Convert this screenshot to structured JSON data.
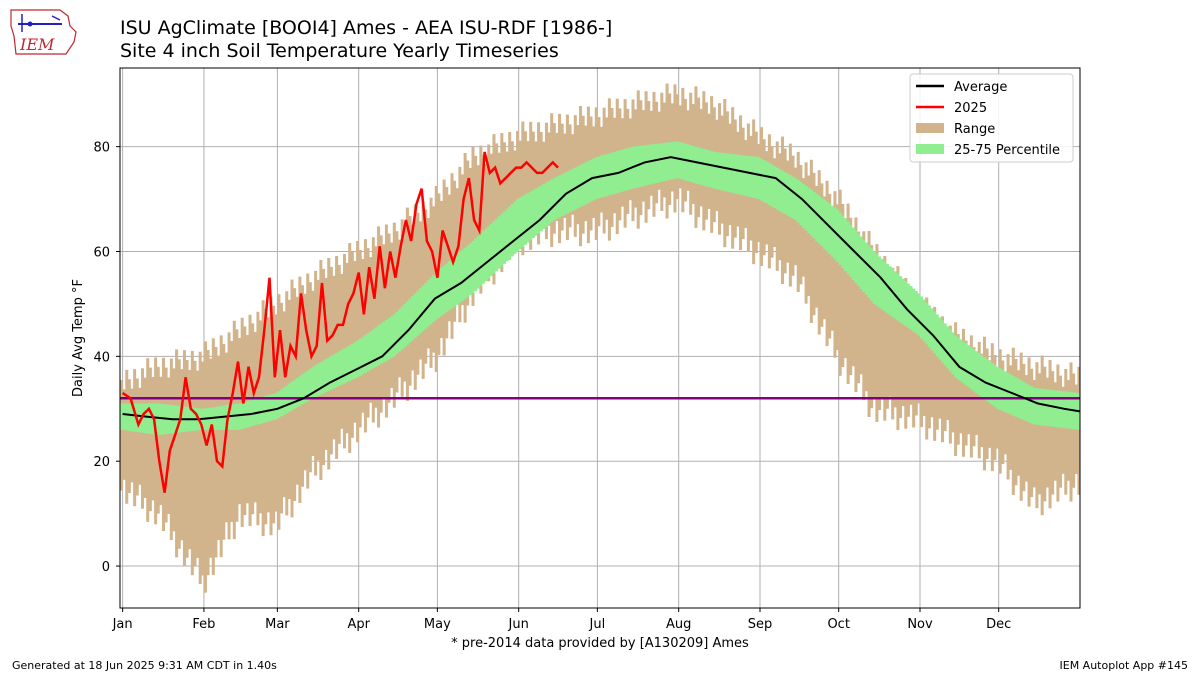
{
  "header": {
    "title_line1": "ISU AgClimate [BOOI4] Ames - AEA ISU-RDF [1986-]",
    "title_line2": "Site 4 inch Soil Temperature Yearly Timeseries"
  },
  "logo": {
    "text": "IEM"
  },
  "footer": {
    "left": "Generated at 18 Jun 2025 9:31 AM CDT in 1.40s",
    "right": "IEM Autoplot App #145"
  },
  "colors": {
    "average": "#000000",
    "current": "#ff0000",
    "range": "#d2b48c",
    "percentile": "#90ee90",
    "freezing": "#800080",
    "grid": "#b0b0b0"
  },
  "chart_data": {
    "type": "bar",
    "xlabel": "* pre-2014 data provided by [A130209] Ames",
    "ylabel": "Daily Avg Temp °F",
    "ylim": [
      -8,
      95
    ],
    "xlim_doy": [
      0,
      366
    ],
    "yticks": [
      0,
      20,
      40,
      60,
      80
    ],
    "month_ticks": [
      {
        "label": "Jan",
        "doy": 1
      },
      {
        "label": "Feb",
        "doy": 32
      },
      {
        "label": "Mar",
        "doy": 60
      },
      {
        "label": "Apr",
        "doy": 91
      },
      {
        "label": "May",
        "doy": 121
      },
      {
        "label": "Jun",
        "doy": 152
      },
      {
        "label": "Jul",
        "doy": 182
      },
      {
        "label": "Aug",
        "doy": 213
      },
      {
        "label": "Sep",
        "doy": 244
      },
      {
        "label": "Oct",
        "doy": 274
      },
      {
        "label": "Nov",
        "doy": 305
      },
      {
        "label": "Dec",
        "doy": 335
      }
    ],
    "grid": true,
    "legend_position": "top-right",
    "freezing_line": 32,
    "series": [
      {
        "name": "Average",
        "kind": "line",
        "doy": [
          1,
          10,
          20,
          30,
          40,
          50,
          60,
          70,
          80,
          90,
          100,
          110,
          120,
          130,
          140,
          150,
          160,
          170,
          180,
          190,
          200,
          210,
          220,
          230,
          240,
          250,
          260,
          270,
          280,
          290,
          300,
          310,
          320,
          330,
          340,
          350,
          360,
          366
        ],
        "values": [
          29,
          28.5,
          28,
          28,
          28.5,
          29,
          30,
          32,
          35,
          37.5,
          40,
          45,
          51,
          54,
          58,
          62,
          66,
          71,
          74,
          75,
          77,
          78,
          77,
          76,
          75,
          74,
          70,
          65,
          60,
          55,
          49,
          44,
          38,
          35,
          33,
          31,
          30,
          29.5
        ]
      },
      {
        "name": "2025",
        "kind": "line",
        "doy": [
          1,
          4,
          7,
          9,
          11,
          13,
          15,
          17,
          19,
          21,
          23,
          25,
          27,
          29,
          31,
          33,
          35,
          37,
          39,
          41,
          43,
          45,
          47,
          49,
          51,
          53,
          55,
          57,
          59,
          61,
          63,
          65,
          67,
          69,
          71,
          73,
          75,
          77,
          79,
          81,
          83,
          85,
          87,
          89,
          91,
          93,
          95,
          97,
          99,
          101,
          103,
          105,
          107,
          109,
          111,
          113,
          115,
          117,
          119,
          121,
          123,
          125,
          127,
          129,
          131,
          133,
          135,
          137,
          139,
          141,
          143,
          145,
          147,
          149,
          151,
          153,
          155,
          157,
          159,
          161,
          163,
          165,
          167
        ],
        "values": [
          33,
          32,
          27,
          29,
          30,
          28,
          20,
          14,
          22,
          25,
          28,
          36,
          30,
          29,
          27,
          23,
          27,
          20,
          19,
          28,
          33,
          39,
          31,
          38,
          33,
          36,
          45,
          55,
          36,
          45,
          36,
          42,
          40,
          52,
          45,
          40,
          42,
          54,
          43,
          44,
          46,
          46,
          50,
          52,
          56,
          48,
          57,
          51,
          61,
          53,
          60,
          55,
          61,
          66,
          62,
          69,
          72,
          62,
          60,
          55,
          64,
          61,
          58,
          61,
          70,
          74,
          66,
          64,
          79,
          75,
          76,
          73,
          74,
          75,
          76,
          76,
          77,
          76,
          75,
          75,
          76,
          77,
          76
        ]
      },
      {
        "name": "Range",
        "kind": "band",
        "doy": [
          1,
          15,
          32,
          46,
          60,
          74,
          91,
          105,
          121,
          135,
          152,
          166,
          182,
          196,
          213,
          227,
          244,
          258,
          274,
          288,
          305,
          319,
          335,
          349,
          366
        ],
        "low": [
          15,
          10,
          -3,
          10,
          8,
          18,
          26,
          32,
          40,
          52,
          62,
          64,
          64,
          67,
          70,
          65,
          60,
          55,
          40,
          30,
          28,
          24,
          20,
          12,
          16
        ],
        "high": [
          35,
          38,
          40,
          45,
          50,
          55,
          60,
          64,
          70,
          78,
          82,
          84,
          86,
          88,
          90,
          88,
          82,
          78,
          70,
          60,
          50,
          44,
          40,
          38,
          36
        ]
      },
      {
        "name": "25-75 Percentile",
        "kind": "band",
        "doy": [
          1,
          15,
          32,
          46,
          60,
          74,
          91,
          105,
          121,
          135,
          152,
          166,
          182,
          196,
          213,
          227,
          244,
          258,
          274,
          288,
          305,
          319,
          335,
          349,
          366
        ],
        "low": [
          26,
          25,
          26,
          26,
          28,
          32,
          36,
          40,
          47,
          52,
          60,
          66,
          70,
          72,
          74,
          72,
          70,
          66,
          58,
          50,
          44,
          36,
          30,
          27,
          26
        ],
        "high": [
          31,
          31,
          30,
          31,
          33,
          38,
          43,
          48,
          56,
          62,
          70,
          74,
          78,
          80,
          81,
          79,
          78,
          74,
          68,
          60,
          52,
          44,
          38,
          34,
          33
        ]
      }
    ]
  }
}
